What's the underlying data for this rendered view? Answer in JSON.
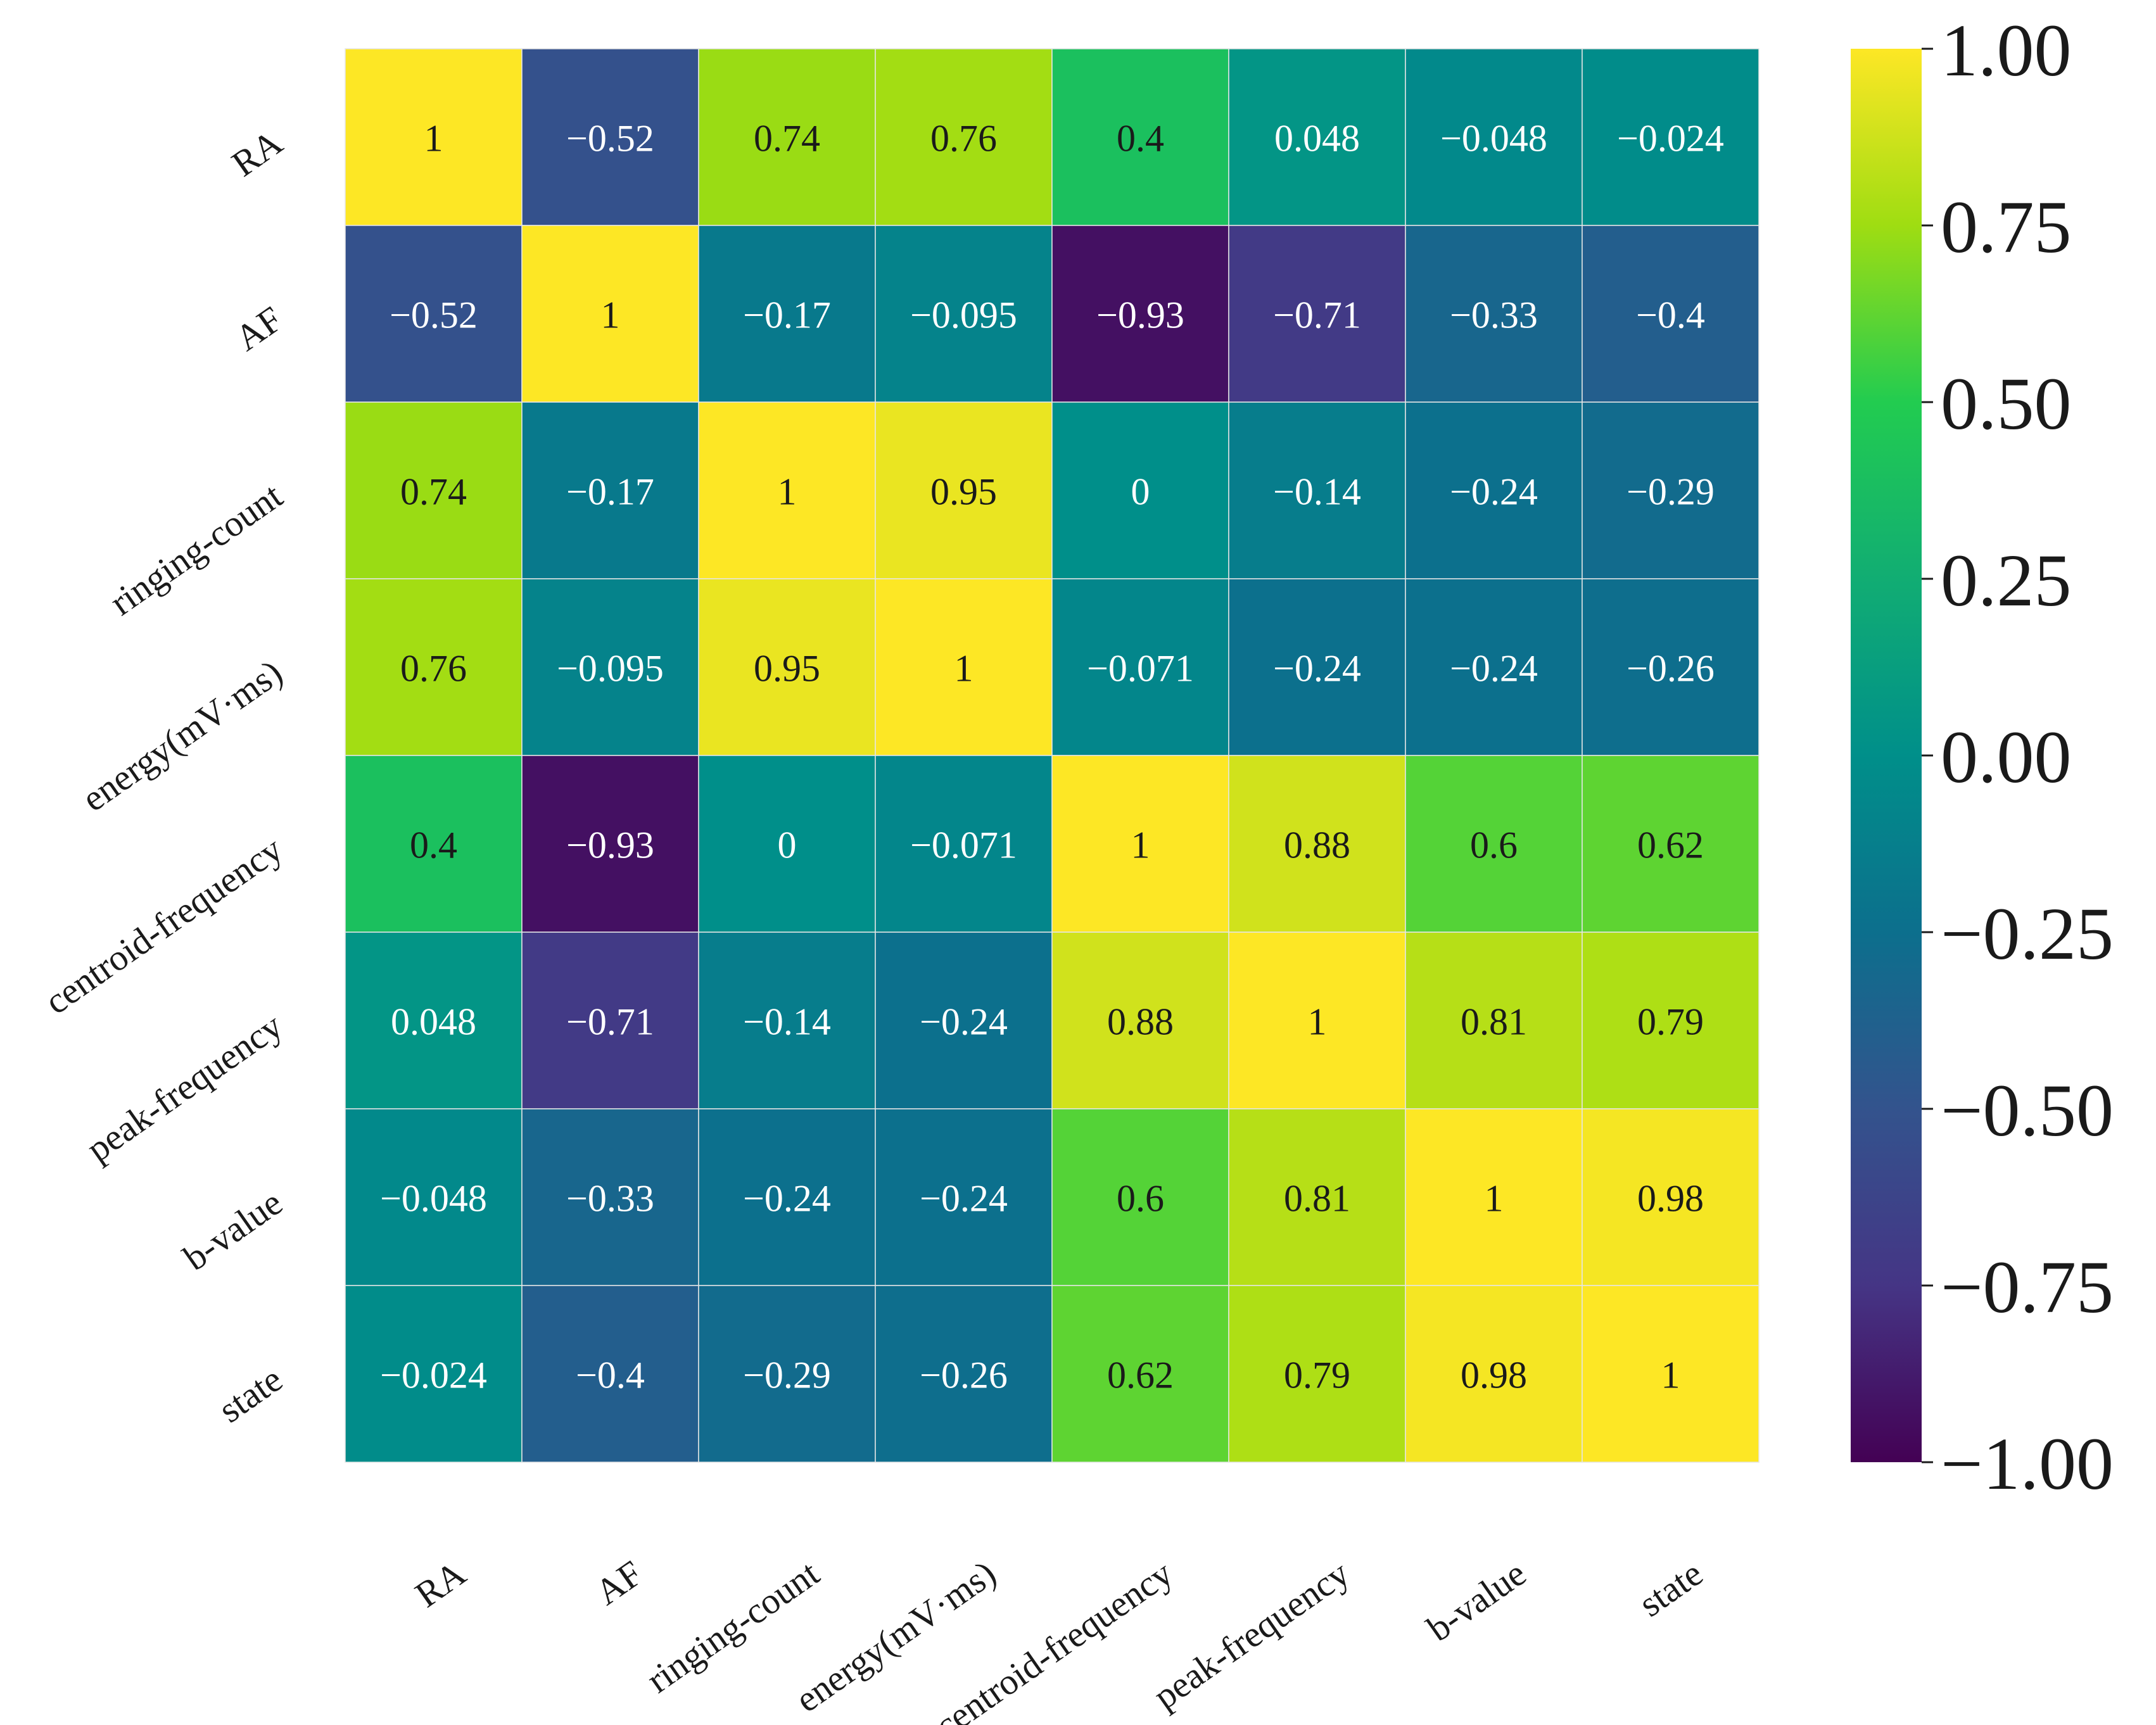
{
  "chart_data": {
    "type": "heatmap",
    "title": "",
    "xlabel": "",
    "ylabel": "",
    "x_labels": [
      "RA",
      "AF",
      "ringing-count",
      "energy(mV·ms)",
      "centroid-frequency",
      "peak-frequency",
      "b-value",
      "state"
    ],
    "y_labels": [
      "RA",
      "AF",
      "ringing-count",
      "energy(mV·ms)",
      "centroid-frequency",
      "peak-frequency",
      "b-value",
      "state"
    ],
    "matrix": [
      [
        1,
        -0.52,
        0.74,
        0.76,
        0.4,
        0.048,
        -0.048,
        -0.024
      ],
      [
        -0.52,
        1,
        -0.17,
        -0.095,
        -0.93,
        -0.71,
        -0.33,
        -0.4
      ],
      [
        0.74,
        -0.17,
        1,
        0.95,
        0,
        -0.14,
        -0.24,
        -0.29
      ],
      [
        0.76,
        -0.095,
        0.95,
        1,
        -0.071,
        -0.24,
        -0.24,
        -0.26
      ],
      [
        0.4,
        -0.93,
        0,
        -0.071,
        1,
        0.88,
        0.6,
        0.62
      ],
      [
        0.048,
        -0.71,
        -0.14,
        -0.24,
        0.88,
        1,
        0.81,
        0.79
      ],
      [
        -0.048,
        -0.33,
        -0.24,
        -0.24,
        0.6,
        0.81,
        1,
        0.98
      ],
      [
        -0.024,
        -0.4,
        -0.29,
        -0.26,
        0.62,
        0.79,
        0.98,
        1
      ]
    ],
    "cell_labels": [
      [
        "1",
        "−0.52",
        "0.74",
        "0.76",
        "0.4",
        "0.048",
        "−0.048",
        "−0.024"
      ],
      [
        "−0.52",
        "1",
        "−0.17",
        "−0.095",
        "−0.93",
        "−0.71",
        "−0.33",
        "−0.4"
      ],
      [
        "0.74",
        "−0.17",
        "1",
        "0.95",
        "0",
        "−0.14",
        "−0.24",
        "−0.29"
      ],
      [
        "0.76",
        "−0.095",
        "0.95",
        "1",
        "−0.071",
        "−0.24",
        "−0.24",
        "−0.26"
      ],
      [
        "0.4",
        "−0.93",
        "0",
        "−0.071",
        "1",
        "0.88",
        "0.6",
        "0.62"
      ],
      [
        "0.048",
        "−0.71",
        "−0.14",
        "−0.24",
        "0.88",
        "1",
        "0.81",
        "0.79"
      ],
      [
        "−0.048",
        "−0.33",
        "−0.24",
        "−0.24",
        "0.6",
        "0.81",
        "1",
        "0.98"
      ],
      [
        "−0.024",
        "−0.4",
        "−0.29",
        "−0.26",
        "0.62",
        "0.79",
        "0.98",
        "1"
      ]
    ],
    "vmin": -1,
    "vmax": 1,
    "colorbar": {
      "ticks": [
        1,
        0.75,
        0.5,
        0.25,
        0,
        -0.25,
        -0.5,
        -0.75,
        -1
      ],
      "tick_labels": [
        "1.00",
        "0.75",
        "0.50",
        "0.25",
        "0.00",
        "−0.25",
        "−0.50",
        "−0.75",
        "−1.00"
      ]
    },
    "colormap": {
      "name": "viridis-like",
      "stops": [
        {
          "value": -1.0,
          "color": "#440154"
        },
        {
          "value": -0.75,
          "color": "#453585"
        },
        {
          "value": -0.5,
          "color": "#33538d"
        },
        {
          "value": -0.25,
          "color": "#0c6f8d"
        },
        {
          "value": 0.0,
          "color": "#008f8a"
        },
        {
          "value": 0.25,
          "color": "#11ad73"
        },
        {
          "value": 0.5,
          "color": "#22cc50"
        },
        {
          "value": 0.75,
          "color": "#9fdd12"
        },
        {
          "value": 1.0,
          "color": "#fde725"
        }
      ]
    },
    "annotation_colors": {
      "on_dark": "#ffffff",
      "on_light": "#1a1a1a"
    },
    "grid_line_color": "#e6e6e6"
  }
}
